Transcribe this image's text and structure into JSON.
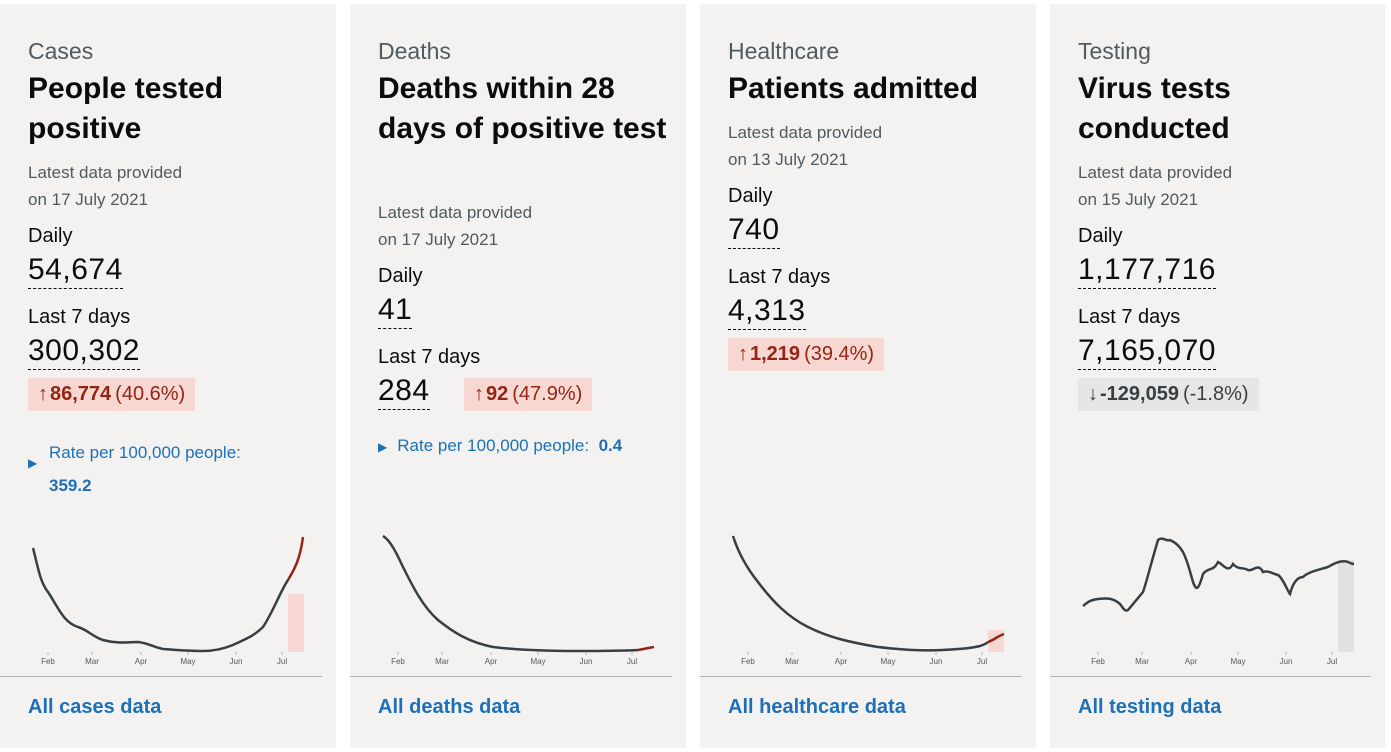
{
  "cards": [
    {
      "caption": "Cases",
      "heading": "People tested positive",
      "updated_line1": "Latest data provided",
      "updated_line2": "on 17 July 2021",
      "daily_label": "Daily",
      "daily_value": "54,674",
      "week_label": "Last 7 days",
      "week_value": "300,302",
      "change": {
        "direction": "up",
        "arrow": "↑",
        "amount": "86,774",
        "percent": "(40.6%)"
      },
      "rate_label": "Rate per 100,000 people:",
      "rate_value": "359.2",
      "link": "All cases data",
      "months": [
        "Feb",
        "Mar",
        "Apr",
        "May",
        "Jun",
        "Jul"
      ]
    },
    {
      "caption": "Deaths",
      "heading": "Deaths within 28 days of positive test",
      "updated_line1": "Latest data provided",
      "updated_line2": "on 17 July 2021",
      "daily_label": "Daily",
      "daily_value": "41",
      "week_label": "Last 7 days",
      "week_value": "284",
      "change": {
        "direction": "up",
        "arrow": "↑",
        "amount": "92",
        "percent": "(47.9%)"
      },
      "rate_label": "Rate per 100,000 people:",
      "rate_value": "0.4",
      "link": "All deaths data",
      "months": [
        "Feb",
        "Mar",
        "Apr",
        "May",
        "Jun",
        "Jul"
      ]
    },
    {
      "caption": "Healthcare",
      "heading": "Patients admitted",
      "updated_line1": "Latest data provided",
      "updated_line2": "on 13 July 2021",
      "daily_label": "Daily",
      "daily_value": "740",
      "week_label": "Last 7 days",
      "week_value": "4,313",
      "change": {
        "direction": "up",
        "arrow": "↑",
        "amount": "1,219",
        "percent": "(39.4%)"
      },
      "link": "All healthcare data",
      "months": [
        "Feb",
        "Mar",
        "Apr",
        "May",
        "Jun",
        "Jul"
      ]
    },
    {
      "caption": "Testing",
      "heading": "Virus tests conducted",
      "updated_line1": "Latest data provided",
      "updated_line2": "on 15 July 2021",
      "daily_label": "Daily",
      "daily_value": "1,177,716",
      "week_label": "Last 7 days",
      "week_value": "7,165,070",
      "change": {
        "direction": "down",
        "arrow": "↓",
        "amount": "-129,059",
        "percent": "(-1.8%)"
      },
      "link": "All testing data",
      "months": [
        "Feb",
        "Mar",
        "Apr",
        "May",
        "Jun",
        "Jul"
      ]
    }
  ],
  "colors": {
    "line": "#383f43",
    "recent_line": "#942514",
    "recent_fill_up": "#f6d7d2",
    "recent_fill_neutral": "#e1e1e1",
    "link": "#1d70b8",
    "card_bg": "#f3f2f1"
  }
}
